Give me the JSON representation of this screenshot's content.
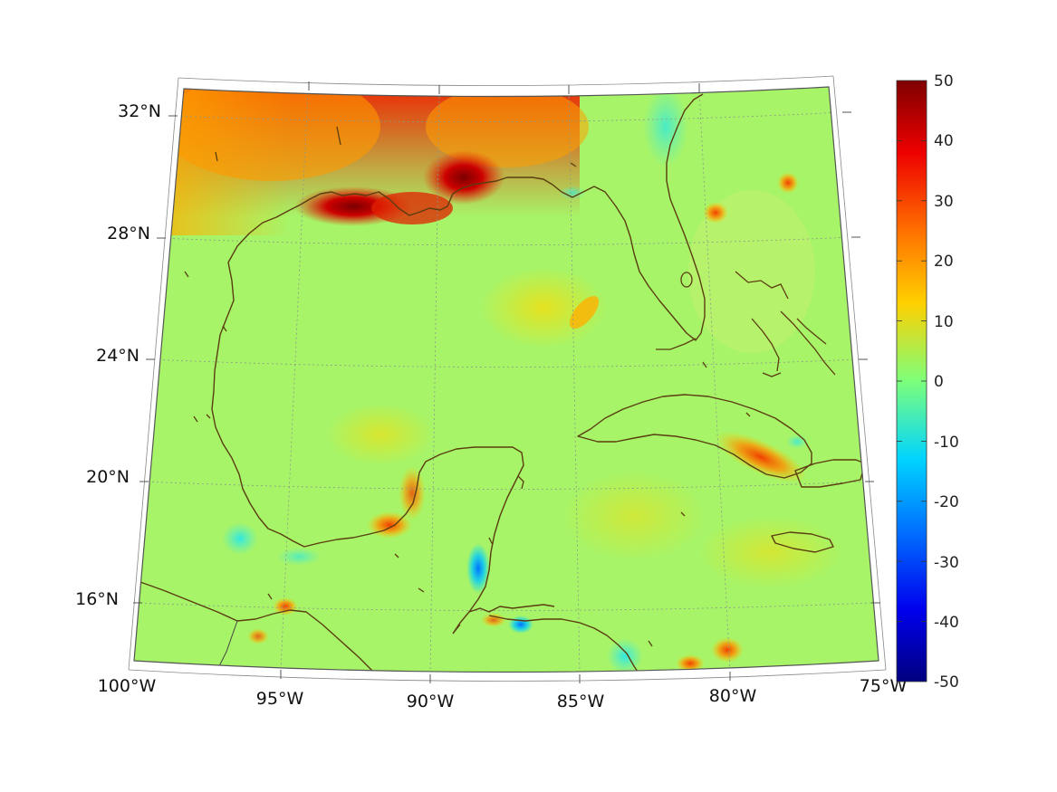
{
  "map": {
    "lat_labels": [
      "32°N",
      "28°N",
      "24°N",
      "20°N",
      "16°N"
    ],
    "lon_labels": [
      "100°W",
      "95°W",
      "90°W",
      "85°W",
      "80°W",
      "75°W"
    ],
    "extent": {
      "lon_min": -100,
      "lon_max": -75,
      "lat_min": 14,
      "lat_max": 33
    },
    "colormap": "jet",
    "hotspots": [
      {
        "region": "Louisiana coast",
        "value": 50
      },
      {
        "region": "Texas/Louisiana inland",
        "value": 35
      },
      {
        "region": "Mississippi delta",
        "value": 45
      },
      {
        "region": "Eastern Cuba",
        "value": 30
      },
      {
        "region": "Bay of Campeche",
        "value": 25
      },
      {
        "region": "Belize coast",
        "value": -25
      },
      {
        "region": "Veracruz coast",
        "value": -15
      },
      {
        "region": "Honduras coast",
        "value": -20
      }
    ]
  },
  "colorbar": {
    "ticks": [
      "50",
      "40",
      "30",
      "20",
      "10",
      "0",
      "-10",
      "-20",
      "-30",
      "-40",
      "-50"
    ],
    "min": -50,
    "max": 50
  }
}
